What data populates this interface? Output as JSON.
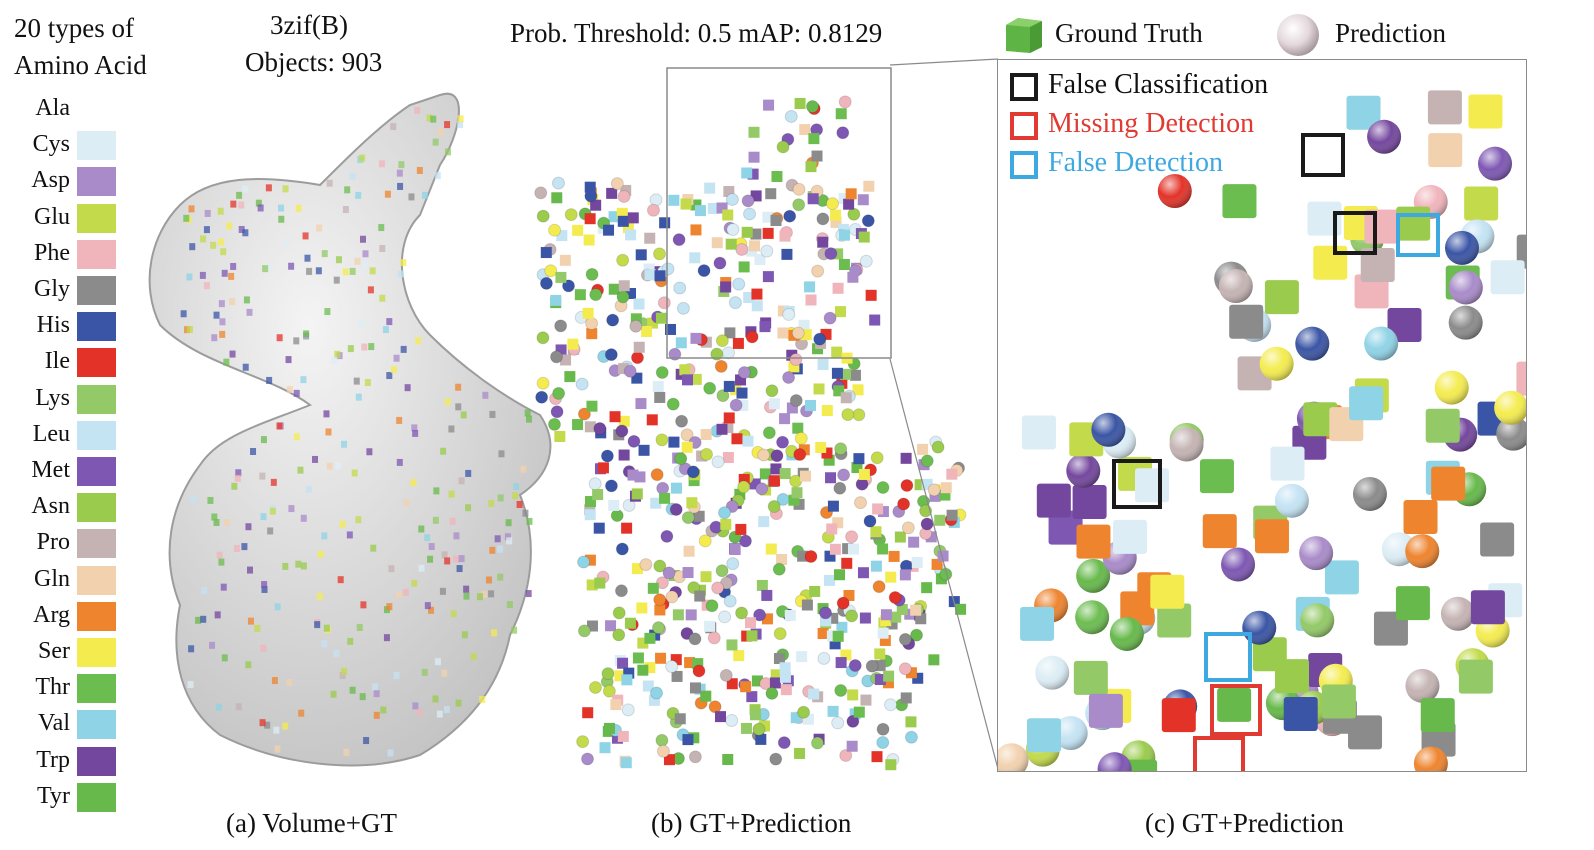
{
  "header": {
    "types_title": "20 types of Amino Acid",
    "types_line1": "20 types of",
    "types_line2": "Amino Acid",
    "structure_id": "3zif(B)",
    "objects": "Objects: 903",
    "metrics": "Prob. Threshold: 0.5 mAP: 0.8129",
    "gt_legend": "Ground Truth",
    "pred_legend": "Prediction"
  },
  "amino_acids": [
    {
      "name": "Ala",
      "color": "#ffffff"
    },
    {
      "name": "Cys",
      "color": "#dcedf5"
    },
    {
      "name": "Asp",
      "color": "#a98bc9"
    },
    {
      "name": "Glu",
      "color": "#c3da4b"
    },
    {
      "name": "Phe",
      "color": "#f0b4bb"
    },
    {
      "name": "Gly",
      "color": "#8b8b8b"
    },
    {
      "name": "His",
      "color": "#3a55a5"
    },
    {
      "name": "Ile",
      "color": "#e33329"
    },
    {
      "name": "Lys",
      "color": "#93c967"
    },
    {
      "name": "Leu",
      "color": "#c4e3f3"
    },
    {
      "name": "Met",
      "color": "#7e57b3"
    },
    {
      "name": "Asn",
      "color": "#9acb4d"
    },
    {
      "name": "Pro",
      "color": "#c5b3b3"
    },
    {
      "name": "Gln",
      "color": "#f2d1ae"
    },
    {
      "name": "Arg",
      "color": "#ee842e"
    },
    {
      "name": "Ser",
      "color": "#f4ec4f"
    },
    {
      "name": "Thr",
      "color": "#6cbd50"
    },
    {
      "name": "Val",
      "color": "#8fd3e6"
    },
    {
      "name": "Trp",
      "color": "#74479e"
    },
    {
      "name": "Tyr",
      "color": "#67b94b"
    }
  ],
  "box_legend": [
    {
      "label": "False Classification",
      "color": "#1a1a1a"
    },
    {
      "label": "Missing Detection",
      "color": "#e03a33"
    },
    {
      "label": "False Detection",
      "color": "#3ea8e0"
    }
  ],
  "captions": {
    "a": "(a) Volume+GT",
    "b": "(b) GT+Prediction",
    "c": "(c) GT+Prediction"
  },
  "colors": {
    "volume_surface": "#e6e6e6",
    "zoom_frame": "#8a8a8a",
    "gt_cube": "#6cbd50",
    "pred_sphere": "#e8dde2"
  }
}
